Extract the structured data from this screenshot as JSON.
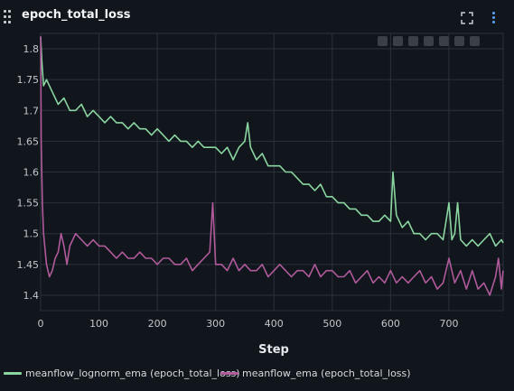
{
  "panel": {
    "title": "epoch_total_loss",
    "icons": {
      "drag": "drag-handle-icon",
      "fullscreen": "fullscreen-icon",
      "more": "more-vertical-icon"
    }
  },
  "colors": {
    "background": "#11161d",
    "grid": "#2c323b",
    "series_1": "#8ad5a0",
    "series_2": "#b05a9c"
  },
  "chart_data": {
    "type": "line",
    "xlabel": "Step",
    "ylabel": "",
    "xlim": [
      0,
      793
    ],
    "ylim": [
      1.375,
      1.825
    ],
    "x_ticks": [
      0,
      100,
      200,
      300,
      400,
      500,
      600,
      700
    ],
    "y_ticks": [
      1.4,
      1.45,
      1.5,
      1.55,
      1.6,
      1.65,
      1.7,
      1.75,
      1.8
    ],
    "y_tick_labels": [
      "1.4",
      "1.45",
      "1.5",
      "1.55",
      "1.6",
      "1.65",
      "1.7",
      "1.75",
      "1.8"
    ],
    "grid": true,
    "legend_position": "bottom",
    "series": [
      {
        "name": "meanflow_lognorm_ema (epoch_total_loss)",
        "color": "#8ad5a0",
        "x": [
          0,
          2,
          5,
          10,
          20,
          30,
          40,
          50,
          60,
          70,
          80,
          90,
          100,
          110,
          120,
          130,
          140,
          150,
          160,
          170,
          180,
          190,
          200,
          210,
          220,
          230,
          240,
          250,
          260,
          270,
          280,
          290,
          300,
          310,
          320,
          330,
          340,
          350,
          355,
          360,
          370,
          380,
          390,
          400,
          410,
          420,
          430,
          440,
          450,
          460,
          470,
          480,
          490,
          500,
          510,
          520,
          530,
          540,
          550,
          560,
          570,
          580,
          590,
          600,
          604,
          610,
          620,
          630,
          640,
          650,
          660,
          670,
          680,
          690,
          700,
          705,
          710,
          715,
          720,
          730,
          740,
          750,
          760,
          770,
          780,
          790,
          793
        ],
        "y": [
          1.82,
          1.78,
          1.74,
          1.75,
          1.73,
          1.71,
          1.72,
          1.7,
          1.7,
          1.71,
          1.69,
          1.7,
          1.69,
          1.68,
          1.69,
          1.68,
          1.68,
          1.67,
          1.68,
          1.67,
          1.67,
          1.66,
          1.67,
          1.66,
          1.65,
          1.66,
          1.65,
          1.65,
          1.64,
          1.65,
          1.64,
          1.64,
          1.64,
          1.63,
          1.64,
          1.62,
          1.64,
          1.65,
          1.68,
          1.64,
          1.62,
          1.63,
          1.61,
          1.61,
          1.61,
          1.6,
          1.6,
          1.59,
          1.58,
          1.58,
          1.57,
          1.58,
          1.56,
          1.56,
          1.55,
          1.55,
          1.54,
          1.54,
          1.53,
          1.53,
          1.52,
          1.52,
          1.53,
          1.52,
          1.6,
          1.53,
          1.51,
          1.52,
          1.5,
          1.5,
          1.49,
          1.5,
          1.5,
          1.49,
          1.55,
          1.49,
          1.5,
          1.55,
          1.49,
          1.48,
          1.49,
          1.48,
          1.49,
          1.5,
          1.48,
          1.49,
          1.485
        ]
      },
      {
        "name": "meanflow_ema (epoch_total_loss)",
        "color": "#b05a9c",
        "x": [
          0,
          1,
          3,
          5,
          10,
          15,
          20,
          25,
          30,
          35,
          40,
          45,
          50,
          60,
          70,
          80,
          90,
          100,
          110,
          120,
          130,
          140,
          150,
          160,
          170,
          180,
          190,
          200,
          210,
          220,
          230,
          240,
          250,
          260,
          270,
          280,
          290,
          295,
          300,
          310,
          320,
          330,
          340,
          350,
          360,
          370,
          380,
          390,
          400,
          410,
          420,
          430,
          440,
          450,
          460,
          470,
          480,
          490,
          500,
          510,
          520,
          530,
          540,
          550,
          560,
          570,
          580,
          590,
          600,
          610,
          620,
          630,
          640,
          650,
          660,
          670,
          680,
          690,
          700,
          710,
          720,
          730,
          740,
          750,
          760,
          770,
          780,
          785,
          790,
          793
        ],
        "y": [
          1.82,
          1.65,
          1.55,
          1.5,
          1.45,
          1.43,
          1.44,
          1.46,
          1.47,
          1.5,
          1.48,
          1.45,
          1.48,
          1.5,
          1.49,
          1.48,
          1.49,
          1.48,
          1.48,
          1.47,
          1.46,
          1.47,
          1.46,
          1.46,
          1.47,
          1.46,
          1.46,
          1.45,
          1.46,
          1.46,
          1.45,
          1.45,
          1.46,
          1.44,
          1.45,
          1.46,
          1.47,
          1.55,
          1.45,
          1.45,
          1.44,
          1.46,
          1.44,
          1.45,
          1.44,
          1.44,
          1.45,
          1.43,
          1.44,
          1.45,
          1.44,
          1.43,
          1.44,
          1.44,
          1.43,
          1.45,
          1.43,
          1.44,
          1.44,
          1.43,
          1.43,
          1.44,
          1.42,
          1.43,
          1.44,
          1.42,
          1.43,
          1.42,
          1.44,
          1.42,
          1.43,
          1.42,
          1.43,
          1.44,
          1.42,
          1.43,
          1.41,
          1.42,
          1.46,
          1.42,
          1.44,
          1.41,
          1.44,
          1.41,
          1.42,
          1.4,
          1.43,
          1.46,
          1.41,
          1.44
        ]
      }
    ]
  }
}
